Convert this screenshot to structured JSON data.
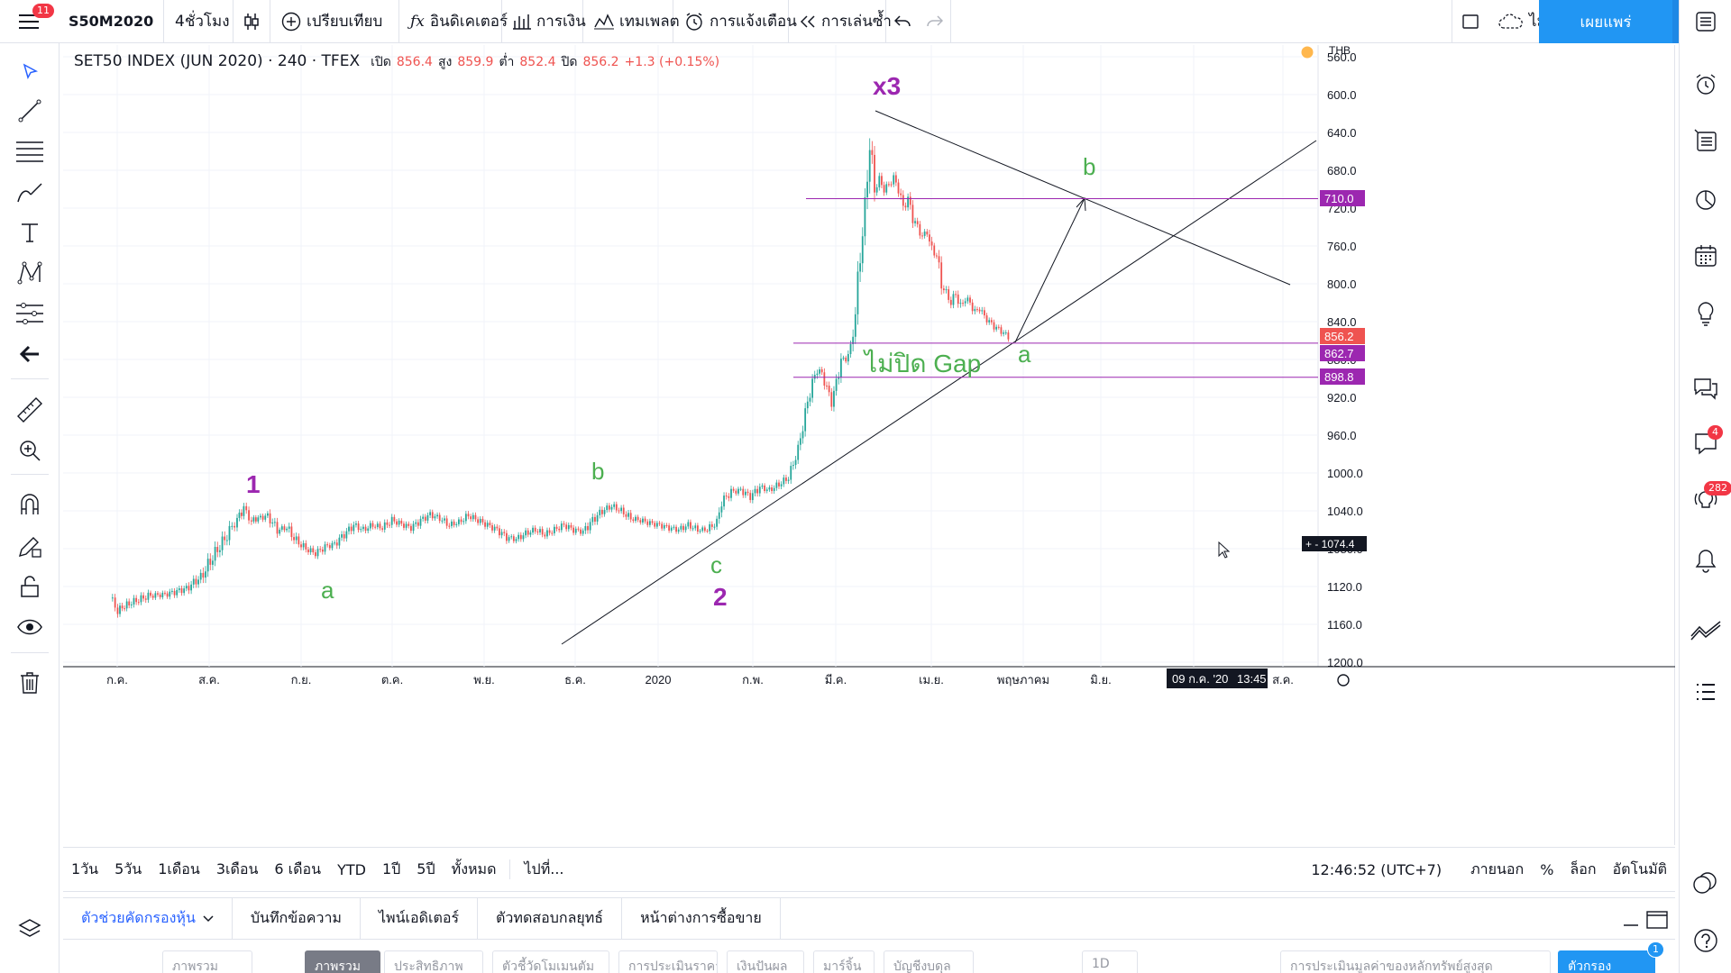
{
  "topbar": {
    "menu_badge": "11",
    "symbol": "S50M2020",
    "interval": "4ชั่วโมง",
    "compare": "เปรียบเทียบ",
    "indicators": "อินดิเคเตอร์",
    "financials": "การเงิน",
    "templates": "เทมเพลต",
    "alert": "การแจ้งเตือน",
    "replay": "การเล่นซ้ำ",
    "layout_name": "ไม่มีชื่อ",
    "publish": "เผยแพร่"
  },
  "legend": {
    "title": "SET50 INDEX (JUN 2020) · 240 · TFEX",
    "open_label": "เปิด",
    "open": "856.4",
    "high_label": "สูง",
    "high": "859.9",
    "low_label": "ต่ำ",
    "low": "852.4",
    "close_label": "ปิด",
    "close": "856.2",
    "change": "+1.3 (+0.15%)"
  },
  "chart_data": {
    "type": "candlestick",
    "currency": "THB",
    "y_ticks": [
      "560.0",
      "600.0",
      "640.0",
      "680.0",
      "720.0",
      "760.0",
      "800.0",
      "840.0",
      "880.0",
      "920.0",
      "960.0",
      "1000.0",
      "1040.0",
      "1080.0",
      "1120.0",
      "1160.0",
      "1200.0"
    ],
    "x_ticks": [
      "ก.ค.",
      "ส.ค.",
      "ก.ย.",
      "ต.ค.",
      "พ.ย.",
      "ธ.ค.",
      "2020",
      "ก.พ.",
      "มี.ค.",
      "เม.ย.",
      "พฤษภาคม",
      "มิ.ย.",
      "ก.ค.",
      "ส.ค."
    ],
    "price_labels": [
      {
        "text": "710.0",
        "color": "#9c27b0"
      },
      {
        "text": "856.2",
        "color": "#ef5350"
      },
      {
        "text": "862.7",
        "color": "#9c27b0"
      },
      {
        "text": "898.8",
        "color": "#9c27b0"
      }
    ],
    "crosshair_price": "1074.4",
    "crosshair_date": "09 ก.ค. '20",
    "crosshair_time": "13:45",
    "horizontal_levels": [
      710.0,
      862.7,
      898.8
    ],
    "annotations": [
      {
        "text": "1",
        "color": "#9c27b0"
      },
      {
        "text": "a",
        "color": "#4caf50"
      },
      {
        "text": "b",
        "color": "#4caf50"
      },
      {
        "text": "c",
        "color": "#4caf50"
      },
      {
        "text": "2",
        "color": "#9c27b0"
      },
      {
        "text": "x3",
        "color": "#9c27b0"
      },
      {
        "text": "ไม่ปิด Gap",
        "color": "#4caf50"
      },
      {
        "text": "a",
        "color": "#4caf50"
      },
      {
        "text": "b",
        "color": "#4caf50"
      }
    ],
    "price_path": [
      [
        0,
        1132
      ],
      [
        8,
        1145
      ],
      [
        20,
        1138
      ],
      [
        40,
        1130
      ],
      [
        60,
        1128
      ],
      [
        80,
        1122
      ],
      [
        95,
        1110
      ],
      [
        110,
        1085
      ],
      [
        125,
        1062
      ],
      [
        133,
        1048
      ],
      [
        140,
        1038
      ],
      [
        148,
        1050
      ],
      [
        155,
        1048
      ],
      [
        165,
        1045
      ],
      [
        175,
        1060
      ],
      [
        185,
        1058
      ],
      [
        195,
        1072
      ],
      [
        205,
        1080
      ],
      [
        215,
        1085
      ],
      [
        225,
        1078
      ],
      [
        235,
        1075
      ],
      [
        245,
        1065
      ],
      [
        255,
        1055
      ],
      [
        265,
        1060
      ],
      [
        275,
        1055
      ],
      [
        285,
        1058
      ],
      [
        295,
        1050
      ],
      [
        305,
        1054
      ],
      [
        315,
        1058
      ],
      [
        325,
        1050
      ],
      [
        335,
        1044
      ],
      [
        345,
        1048
      ],
      [
        355,
        1055
      ],
      [
        365,
        1052
      ],
      [
        375,
        1045
      ],
      [
        385,
        1050
      ],
      [
        395,
        1055
      ],
      [
        405,
        1060
      ],
      [
        415,
        1068
      ],
      [
        425,
        1070
      ],
      [
        435,
        1064
      ],
      [
        445,
        1060
      ],
      [
        455,
        1065
      ],
      [
        465,
        1060
      ],
      [
        475,
        1055
      ],
      [
        485,
        1060
      ],
      [
        495,
        1062
      ],
      [
        505,
        1050
      ],
      [
        515,
        1040
      ],
      [
        525,
        1035
      ],
      [
        535,
        1040
      ],
      [
        545,
        1048
      ],
      [
        555,
        1050
      ],
      [
        565,
        1053
      ],
      [
        575,
        1055
      ],
      [
        585,
        1058
      ],
      [
        595,
        1060
      ],
      [
        605,
        1055
      ],
      [
        615,
        1060
      ],
      [
        625,
        1060
      ],
      [
        635,
        1052
      ],
      [
        640,
        1030
      ],
      [
        650,
        1020
      ],
      [
        660,
        1018
      ],
      [
        670,
        1025
      ],
      [
        680,
        1015
      ],
      [
        690,
        1018
      ],
      [
        700,
        1012
      ],
      [
        710,
        1005
      ],
      [
        715,
        990
      ],
      [
        720,
        975
      ],
      [
        725,
        950
      ],
      [
        730,
        925
      ],
      [
        735,
        905
      ],
      [
        740,
        890
      ],
      [
        745,
        895
      ],
      [
        750,
        910
      ],
      [
        755,
        925
      ],
      [
        760,
        905
      ],
      [
        765,
        880
      ],
      [
        770,
        880
      ],
      [
        775,
        868
      ],
      [
        780,
        830
      ],
      [
        785,
        770
      ],
      [
        790,
        720
      ],
      [
        795,
        650
      ],
      [
        800,
        700
      ],
      [
        805,
        690
      ],
      [
        810,
        700
      ],
      [
        815,
        695
      ],
      [
        820,
        688
      ],
      [
        825,
        700
      ],
      [
        830,
        720
      ],
      [
        835,
        710
      ],
      [
        840,
        730
      ],
      [
        845,
        740
      ],
      [
        850,
        750
      ],
      [
        855,
        745
      ],
      [
        860,
        765
      ],
      [
        865,
        770
      ],
      [
        870,
        800
      ],
      [
        875,
        810
      ],
      [
        880,
        820
      ],
      [
        885,
        810
      ],
      [
        890,
        825
      ],
      [
        895,
        815
      ],
      [
        900,
        820
      ],
      [
        905,
        830
      ],
      [
        910,
        826
      ],
      [
        915,
        835
      ],
      [
        920,
        840
      ],
      [
        925,
        845
      ],
      [
        930,
        848
      ],
      [
        935,
        852
      ],
      [
        940,
        856
      ]
    ]
  },
  "rangebar": {
    "ranges": [
      "1วัน",
      "5วัน",
      "1เดือน",
      "3เดือน",
      "6 เดือน",
      "YTD",
      "1ปี",
      "5ปี",
      "ทั้งหมด"
    ],
    "goto": "ไปที่...",
    "clock": "12:46:52 (UTC+7)",
    "session": "ภายนอก",
    "percent": "%",
    "log": "ล็อก",
    "auto": "อัตโนมัติ"
  },
  "bottom_tabs": [
    "ตัวช่วยคัดกรองหุ้น",
    "บันทึกข้อความ",
    "ไพน์เอดิเตอร์",
    "ตัวทดสอบกลยุทธ์",
    "หน้าต่างการซื้อขาย"
  ],
  "bottom_toolbar": {
    "pills": [
      "ภาพรวม",
      "ภาพรวม",
      "ประสิทธิภาพ",
      "ตัวชี้วัดโมเมนตัม",
      "การประเมินราคา",
      "เงินปันผล",
      "มาร์จิ้น",
      "บัญชีงบดุล"
    ],
    "interval": "1D",
    "screener_query": "การประเมินมูลค่าของหลักทรัพย์สูงสุด",
    "filter_label": "ตัวกรอง",
    "filter_badge": "1"
  },
  "right_badges": {
    "ideas": "4",
    "streams": "282"
  }
}
